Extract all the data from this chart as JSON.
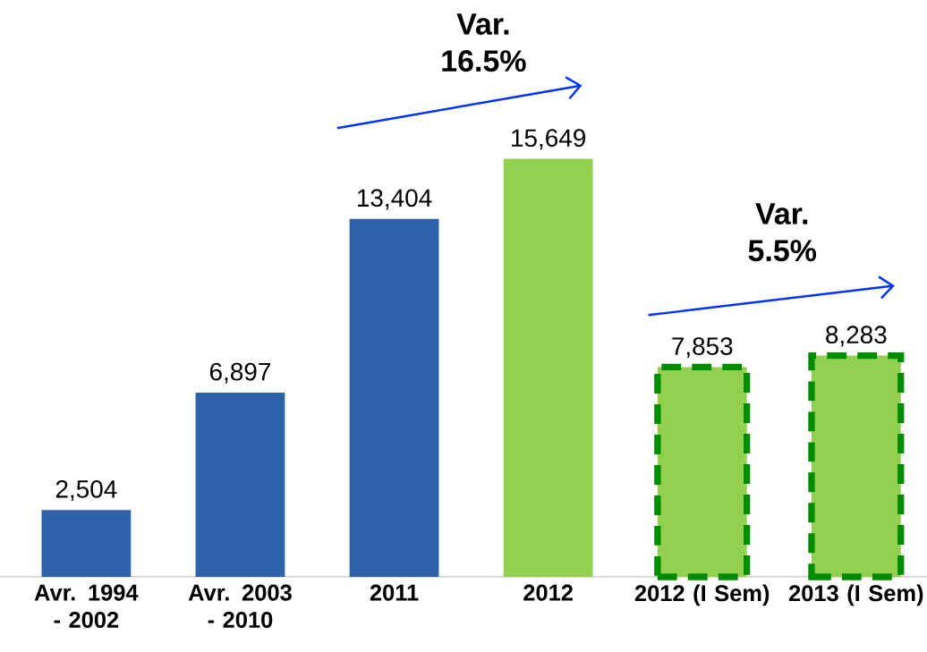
{
  "chart_data": {
    "type": "bar",
    "categories": [
      "Avr. 1994 - 2002",
      "Avr. 2003 - 2010",
      "2011",
      "2012",
      "2012 (I Sem)",
      "2013 (I Sem)"
    ],
    "series": [
      {
        "color": "#2f62a8",
        "values": [
          2504,
          6897,
          13404,
          null,
          null,
          null
        ],
        "value_labels": [
          "2,504",
          "6,897",
          "13,404",
          null,
          null,
          null
        ]
      },
      {
        "color": "#92d050",
        "values": [
          null,
          null,
          null,
          15649,
          null,
          null
        ],
        "value_labels": [
          null,
          null,
          null,
          "15,649",
          null,
          null
        ]
      },
      {
        "color": "#92d050",
        "line_style": "dashed",
        "values": [
          null,
          null,
          null,
          null,
          7853,
          8283
        ],
        "value_labels": [
          null,
          null,
          null,
          null,
          "7,853",
          "8,283"
        ]
      }
    ],
    "annotations": [
      "Var. 16.5%",
      "Var. 5.5%"
    ]
  }
}
